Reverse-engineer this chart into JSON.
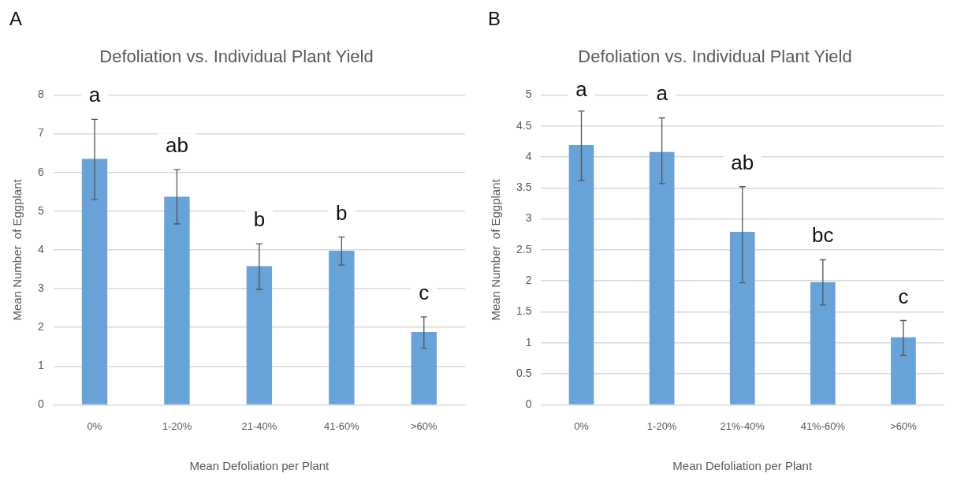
{
  "chart_data": [
    {
      "type": "bar",
      "title": "Defoliation vs. Individual Plant Yield",
      "xlabel": "Mean Defoliation per Plant",
      "ylabel": "Mean Number  of Eggplant",
      "categories": [
        "0%",
        "1-20%",
        "21-40%",
        "41-60%",
        ">60%"
      ],
      "values": [
        6.35,
        5.37,
        3.58,
        3.98,
        1.88
      ],
      "errors": [
        [
          5.3,
          7.37
        ],
        [
          4.67,
          6.07
        ],
        [
          2.98,
          4.16
        ],
        [
          3.61,
          4.33
        ],
        [
          1.46,
          2.27
        ]
      ],
      "color": "#67a2d8",
      "ylim": [
        0,
        8
      ],
      "yticks": [
        0,
        1,
        2,
        3,
        4,
        5,
        6,
        7,
        8
      ],
      "grid": "y",
      "annotations": [
        "A",
        "a",
        "ab",
        "b",
        "b",
        "c"
      ]
    },
    {
      "type": "bar",
      "title": "Defoliation vs. Individual Plant Yield",
      "xlabel": "Mean Defoliation per Plant",
      "ylabel": "Mean Number  of Eggplant",
      "categories": [
        "0%",
        "1-20%",
        "21%-40%",
        "41%-60%",
        ">60%"
      ],
      "values": [
        4.19,
        4.08,
        2.79,
        1.98,
        1.09
      ],
      "errors": [
        [
          3.62,
          4.74
        ],
        [
          3.57,
          4.63
        ],
        [
          1.97,
          3.52
        ],
        [
          1.61,
          2.34
        ],
        [
          0.8,
          1.36
        ]
      ],
      "color": "#67a2d8",
      "ylim": [
        0,
        5
      ],
      "yticks": [
        0,
        0.5,
        1,
        1.5,
        2,
        2.5,
        3,
        3.5,
        4,
        4.5,
        5
      ],
      "grid": "y",
      "annotations": [
        "B",
        "a",
        "a",
        "ab",
        "bc",
        "c"
      ]
    }
  ]
}
